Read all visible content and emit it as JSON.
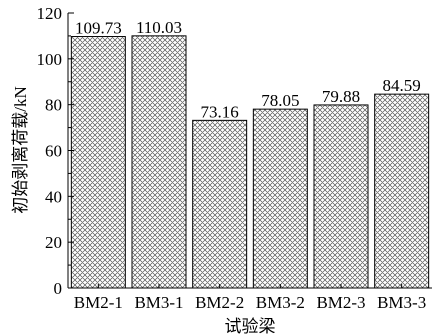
{
  "chart_data": {
    "type": "bar",
    "title": "",
    "xlabel": "试验梁",
    "ylabel": "初始剥离荷载/kN",
    "categories": [
      "BM2-1",
      "BM3-1",
      "BM2-2",
      "BM3-2",
      "BM2-3",
      "BM3-3"
    ],
    "values": [
      109.73,
      110.03,
      73.16,
      78.05,
      79.88,
      84.59
    ],
    "value_labels": [
      "109.73",
      "110.03",
      "73.16",
      "78.05",
      "79.88",
      "84.59"
    ],
    "ylim": [
      0,
      120
    ],
    "yticks": [
      0,
      20,
      40,
      60,
      80,
      100,
      120
    ],
    "ytick_labels": [
      "0",
      "20",
      "40",
      "60",
      "80",
      "100",
      "120"
    ],
    "grid": false,
    "legend": "none",
    "bar_fill": "crosshatch",
    "colors": {
      "bar_stroke": "#000000",
      "hatch": "#555555",
      "axis": "#000000"
    }
  }
}
